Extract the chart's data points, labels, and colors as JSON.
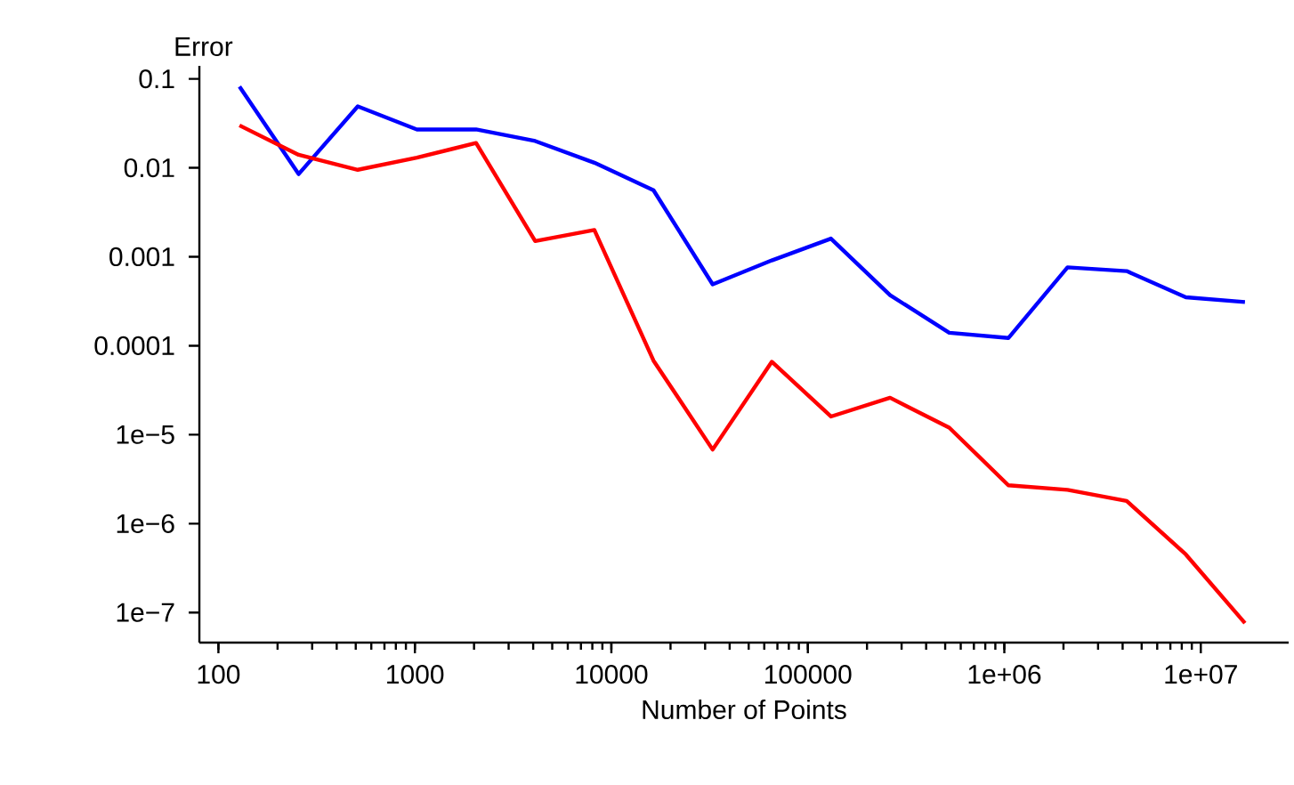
{
  "chart_data": {
    "type": "line",
    "xlabel": "Number of Points",
    "ylabel": "Error",
    "log": "xy",
    "grid": false,
    "marker": "none",
    "line_style": "solid",
    "xlim": [
      80,
      28000000
    ],
    "ylim": [
      4.6e-08,
      0.14
    ],
    "xticks": [
      100,
      1000,
      10000,
      100000,
      {
        "value": 1000000,
        "label": "1e+06"
      },
      {
        "value": 10000000,
        "label": "1e+07"
      }
    ],
    "yticks": [
      0.1,
      0.01,
      0.001,
      0.0001,
      {
        "value": 1e-05,
        "label": "1e−5"
      },
      {
        "value": 1e-06,
        "label": "1e−6"
      },
      {
        "value": 1e-07,
        "label": "1e−7"
      }
    ],
    "x": [
      128,
      256,
      512,
      1024,
      2048,
      4096,
      8192,
      16384,
      32768,
      65536,
      131072,
      262144,
      524288,
      1048576,
      2097152,
      4194304,
      8388608,
      16777216
    ],
    "series": [
      {
        "color": "#0000ff",
        "values": [
          0.082,
          0.0085,
          0.049,
          0.027,
          0.027,
          0.02,
          0.0114,
          0.0056,
          0.00049,
          0.00091,
          0.0016,
          0.00037,
          0.00014,
          0.000122,
          0.00076,
          0.00069,
          0.00035,
          0.00031
        ]
      },
      {
        "color": "#ff0000",
        "values": [
          0.03,
          0.014,
          0.0095,
          0.013,
          0.019,
          0.0015,
          0.002,
          6.8e-05,
          6.8e-06,
          6.6e-05,
          1.6e-05,
          2.6e-05,
          1.2e-05,
          2.7e-06,
          2.4e-06,
          1.8e-06,
          4.5e-07,
          7.6e-08
        ]
      }
    ]
  }
}
